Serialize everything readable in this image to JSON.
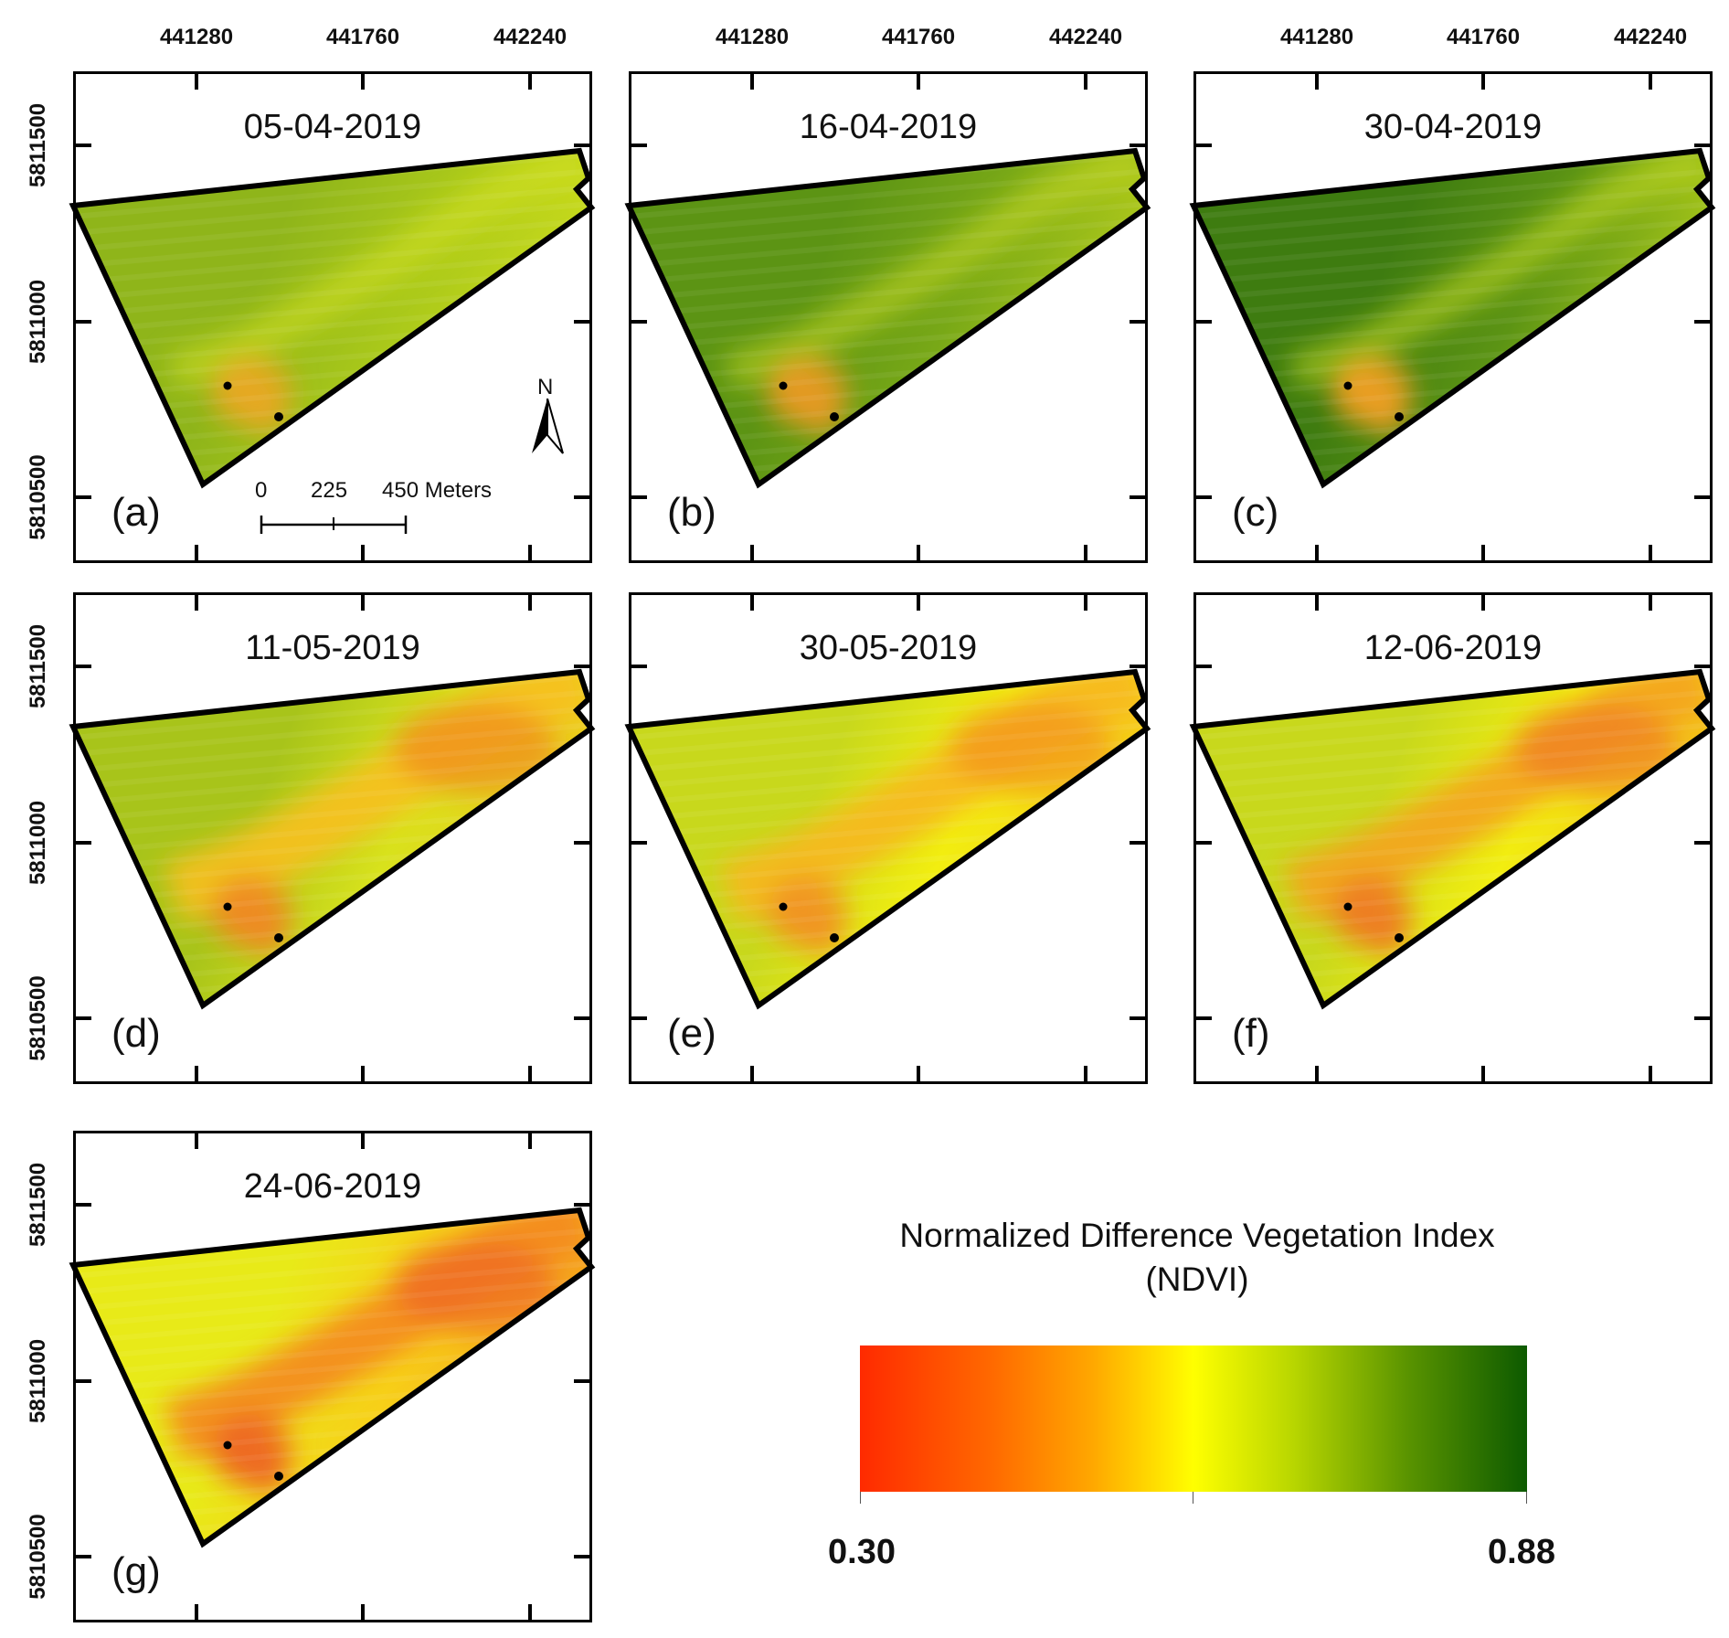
{
  "figure": {
    "x_axis_labels": [
      "441280",
      "441760",
      "442240"
    ],
    "y_axis_labels": [
      "5811500",
      "5811000",
      "5810500"
    ],
    "panels": [
      {
        "letter": "(a)",
        "date": "05-04-2019",
        "mean_ndvi_class": "green-yellow",
        "colors": [
          "#8fb51a",
          "#a9c81a",
          "#d6e21c",
          "#e8a822"
        ]
      },
      {
        "letter": "(b)",
        "date": "16-04-2019",
        "mean_ndvi_class": "green",
        "colors": [
          "#5c9414",
          "#78a817",
          "#c8d81c",
          "#e89b22"
        ]
      },
      {
        "letter": "(c)",
        "date": "30-04-2019",
        "mean_ndvi_class": "dark-green",
        "colors": [
          "#3e7c10",
          "#5c9414",
          "#c8dc1c",
          "#f0a020"
        ]
      },
      {
        "letter": "(d)",
        "date": "11-05-2019",
        "mean_ndvi_class": "yellow-green-orange",
        "colors": [
          "#a8c41a",
          "#d8e21c",
          "#f7c01e",
          "#f08a20"
        ]
      },
      {
        "letter": "(e)",
        "date": "30-05-2019",
        "mean_ndvi_class": "yellow-orange",
        "colors": [
          "#c8d81c",
          "#f2ee10",
          "#f7b81e",
          "#f29420"
        ]
      },
      {
        "letter": "(f)",
        "date": "12-06-2019",
        "mean_ndvi_class": "yellow-orange",
        "colors": [
          "#c8d81c",
          "#f2ee10",
          "#f4a41e",
          "#ef7c22"
        ]
      },
      {
        "letter": "(g)",
        "date": "24-06-2019",
        "mean_ndvi_class": "orange-red",
        "colors": [
          "#e8ea18",
          "#f7d018",
          "#f48a20",
          "#ee6622"
        ]
      }
    ],
    "north_arrow_label": "N",
    "scale_bar": {
      "labels": [
        "0",
        "225",
        "450 Meters"
      ]
    }
  },
  "legend": {
    "title_line1": "Normalized Difference Vegetation Index",
    "title_line2": "(NDVI)",
    "min_label": "0.30",
    "max_label": "0.88",
    "min_value": 0.3,
    "max_value": 0.88,
    "colormap": [
      "#ff2a00",
      "#ff8c00",
      "#ffff00",
      "#8cbd00",
      "#0d5a00"
    ]
  }
}
